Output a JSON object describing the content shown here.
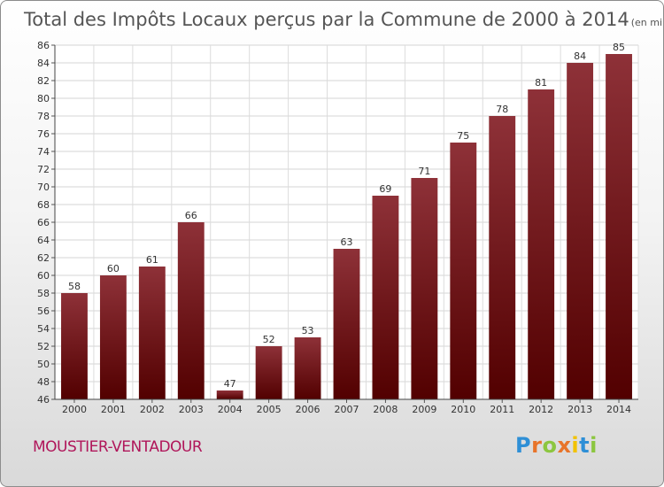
{
  "chart_data": {
    "type": "bar",
    "title": "Total des Impôts Locaux perçus par la Commune de 2000 à 2014",
    "subtitle": "(en milliers d'€)",
    "categories": [
      "2000",
      "2001",
      "2002",
      "2003",
      "2004",
      "2005",
      "2006",
      "2007",
      "2008",
      "2009",
      "2010",
      "2011",
      "2012",
      "2013",
      "2014"
    ],
    "values": [
      58,
      60,
      61,
      66,
      47,
      52,
      53,
      63,
      69,
      71,
      75,
      78,
      81,
      84,
      85
    ],
    "ylim": [
      46,
      86
    ],
    "yticks": [
      46,
      48,
      50,
      52,
      54,
      56,
      58,
      60,
      62,
      64,
      66,
      68,
      70,
      72,
      74,
      76,
      78,
      80,
      82,
      84,
      86
    ],
    "grid": true,
    "bar_color": "#7a0f16",
    "xlabel": "",
    "ylabel": ""
  },
  "commune_name": "MOUSTIER-VENTADOUR",
  "logo": {
    "letters": [
      "P",
      "r",
      "o",
      "x",
      "i",
      "t",
      "i"
    ],
    "colors": [
      "#2e8fd6",
      "#e8742a",
      "#8cc63f",
      "#e8742a",
      "#f2c200",
      "#2e8fd6",
      "#8cc63f"
    ]
  }
}
